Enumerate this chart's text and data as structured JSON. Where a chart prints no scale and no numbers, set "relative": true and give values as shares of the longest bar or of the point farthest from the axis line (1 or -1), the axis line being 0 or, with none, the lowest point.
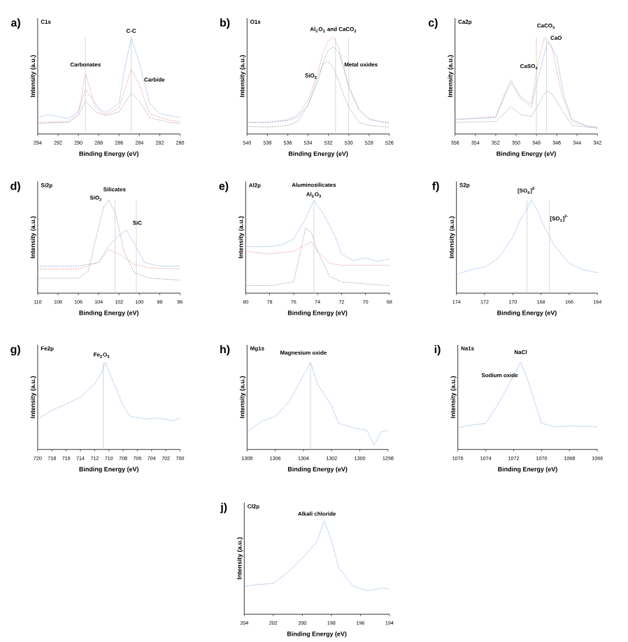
{
  "chart_data": [
    {
      "type": "line",
      "title": "C1s",
      "xlabel": "Binding Energy (eV)",
      "ylabel": "Intensity (a.u.)",
      "relative": true,
      "marker": "none",
      "line_style": "dashed",
      "xlim": [
        294,
        280
      ],
      "xticks": [
        294,
        292,
        290,
        288,
        286,
        284,
        282,
        280
      ],
      "ref_lines": [
        {
          "axis": "x",
          "value": 289.3,
          "color": "#cccccc"
        },
        {
          "axis": "x",
          "value": 284.8,
          "color": "#cccccc"
        }
      ],
      "annotations": [
        "a)",
        "Carbonates",
        "C-C",
        "Carbide"
      ],
      "series": [
        {
          "color": "#8fb0e8",
          "x": [
            294,
            293,
            291,
            290,
            289.3,
            288,
            287.3,
            286,
            285.5,
            284.8,
            284,
            283,
            282,
            281,
            280
          ],
          "values": [
            0.17,
            0.2,
            0.16,
            0.23,
            0.46,
            0.27,
            0.22,
            0.32,
            0.64,
            1.0,
            0.73,
            0.32,
            0.21,
            0.19,
            0.17
          ]
        },
        {
          "color": "#f0a0a0",
          "x": [
            294,
            291,
            290,
            289.3,
            288.3,
            287.3,
            286,
            285.3,
            284.8,
            284,
            283,
            281,
            280
          ],
          "values": [
            0.12,
            0.13,
            0.21,
            0.63,
            0.27,
            0.2,
            0.27,
            0.51,
            0.67,
            0.51,
            0.21,
            0.14,
            0.13
          ]
        },
        {
          "color": "#a8a8a8",
          "x": [
            294,
            291,
            290,
            289.3,
            288.3,
            287.3,
            286,
            284.8,
            284,
            283,
            281,
            280
          ],
          "values": [
            0.11,
            0.12,
            0.19,
            0.34,
            0.23,
            0.19,
            0.23,
            0.42,
            0.34,
            0.17,
            0.12,
            0.11
          ]
        }
      ]
    },
    {
      "type": "line",
      "title": "O1s",
      "xlabel": "Binding Energy (eV)",
      "ylabel": "Intensity (a.u.)",
      "relative": true,
      "marker": "none",
      "line_style": "dashed",
      "xlim": [
        540,
        526
      ],
      "xticks": [
        540,
        538,
        536,
        534,
        532,
        530,
        528,
        526
      ],
      "ref_lines": [
        {
          "axis": "x",
          "value": 531.3,
          "color": "#cccccc"
        },
        {
          "axis": "x",
          "value": 530.0,
          "color": "#cccccc"
        }
      ],
      "annotations": [
        "b)",
        "Al$_{2}$O$_{3}$ and CaCO$_{3}$",
        "Metal oxides",
        "SiO$_{2}$"
      ],
      "series": [
        {
          "color": "#f0a0a0",
          "x": [
            540,
            538,
            536,
            535,
            534,
            533,
            532.5,
            532,
            531.5,
            531,
            530.5,
            530,
            529,
            528,
            527,
            526
          ],
          "values": [
            0.12,
            0.12,
            0.15,
            0.2,
            0.35,
            0.65,
            0.85,
            0.97,
            1.0,
            0.9,
            0.7,
            0.5,
            0.25,
            0.16,
            0.13,
            0.12
          ]
        },
        {
          "color": "#8fb0e8",
          "x": [
            540,
            538,
            536,
            535,
            534,
            533,
            532.5,
            532,
            531.5,
            531,
            530.5,
            530,
            529,
            528,
            527,
            526
          ],
          "values": [
            0.12,
            0.12,
            0.14,
            0.18,
            0.3,
            0.55,
            0.75,
            0.87,
            0.9,
            0.85,
            0.68,
            0.48,
            0.25,
            0.15,
            0.13,
            0.11
          ]
        },
        {
          "color": "#a8a8a8",
          "x": [
            540,
            538,
            536,
            535,
            534,
            533,
            532.5,
            532,
            531.5,
            531,
            530.5,
            530,
            529,
            528,
            527,
            526
          ],
          "values": [
            0.08,
            0.07,
            0.09,
            0.13,
            0.3,
            0.6,
            0.73,
            0.75,
            0.68,
            0.55,
            0.4,
            0.28,
            0.12,
            0.09,
            0.08,
            0.07
          ]
        }
      ]
    },
    {
      "type": "line",
      "title": "Ca2p",
      "xlabel": "Binding Energy (eV)",
      "ylabel": "Intensity (a.u.)",
      "relative": true,
      "marker": "none",
      "line_style": "dashed",
      "xlim": [
        356,
        342
      ],
      "xticks": [
        356,
        354,
        352,
        350,
        348,
        346,
        344,
        342
      ],
      "ref_lines": [
        {
          "axis": "x",
          "value": 348.0,
          "color": "#cccccc"
        },
        {
          "axis": "x",
          "value": 347.0,
          "color": "#cccccc"
        }
      ],
      "annotations": [
        "c)",
        "CaSO$_{4}$",
        "CaCO$_{3}$",
        "CaO"
      ],
      "series": [
        {
          "color": "#f0a0a0",
          "x": [
            356,
            352,
            351,
            350.5,
            349.5,
            348.5,
            347.8,
            347.2,
            346.5,
            345.5,
            344.5,
            343,
            342
          ],
          "values": [
            0.15,
            0.18,
            0.45,
            0.56,
            0.38,
            0.31,
            0.76,
            1.0,
            0.91,
            0.41,
            0.13,
            0.08,
            0.07
          ]
        },
        {
          "color": "#8fb0e8",
          "x": [
            356,
            352,
            351,
            350.5,
            349.5,
            348.5,
            347.8,
            347,
            346.8,
            346,
            345.3,
            344.5,
            343,
            342
          ],
          "values": [
            0.15,
            0.17,
            0.42,
            0.53,
            0.36,
            0.28,
            0.6,
            0.92,
            0.95,
            0.8,
            0.4,
            0.15,
            0.08,
            0.07
          ]
        },
        {
          "color": "#a8a8a8",
          "x": [
            356,
            352,
            350.5,
            349.5,
            348.5,
            347,
            346.5,
            345.5,
            344.5,
            342
          ],
          "values": [
            0.12,
            0.13,
            0.28,
            0.2,
            0.18,
            0.45,
            0.42,
            0.25,
            0.09,
            0.06
          ]
        }
      ]
    },
    {
      "type": "line",
      "title": "Si2p",
      "xlabel": "Binding Energy (eV)",
      "ylabel": "Intensity (a.u.)",
      "relative": true,
      "marker": "none",
      "line_style": "dashed",
      "xlim": [
        110,
        96
      ],
      "xticks": [
        110,
        108,
        106,
        104,
        102,
        100,
        98,
        96
      ],
      "ref_lines": [
        {
          "axis": "x",
          "value": 102.4,
          "color": "#cccccc"
        },
        {
          "axis": "x",
          "value": 100.3,
          "color": "#cccccc"
        }
      ],
      "annotations": [
        "d)",
        "Silicates",
        "SiO$_{2}$",
        "SiC"
      ],
      "series": [
        {
          "color": "#a8a8a8",
          "x": [
            110,
            106,
            105,
            104.5,
            103.5,
            103,
            102.3,
            101.5,
            100.5,
            99,
            96
          ],
          "values": [
            0.16,
            0.16,
            0.24,
            0.49,
            0.93,
            1.0,
            0.84,
            0.44,
            0.22,
            0.16,
            0.14
          ]
        },
        {
          "color": "#8fb0e8",
          "x": [
            110,
            106,
            104,
            103,
            102,
            101.3,
            100.5,
            99.5,
            98,
            96
          ],
          "values": [
            0.29,
            0.29,
            0.33,
            0.51,
            0.62,
            0.68,
            0.53,
            0.33,
            0.29,
            0.29
          ]
        },
        {
          "color": "#f0a0a0",
          "x": [
            110,
            106,
            104,
            103,
            102,
            100.5,
            99,
            96
          ],
          "values": [
            0.26,
            0.26,
            0.33,
            0.47,
            0.42,
            0.31,
            0.27,
            0.26
          ]
        }
      ]
    },
    {
      "type": "line",
      "title": "Al2p",
      "xlabel": "Binding Energy (eV)",
      "ylabel": "Intensity (a.u.)",
      "relative": true,
      "marker": "none",
      "line_style": "dashed",
      "xlim": [
        80,
        68
      ],
      "xticks": [
        80,
        78,
        76,
        74,
        72,
        70,
        68
      ],
      "ref_lines": [
        {
          "axis": "x",
          "value": 74.3,
          "color": "#cccccc"
        }
      ],
      "annotations": [
        "e)",
        "Aluminosilicates",
        "Al$_{2}$O$_{3}$"
      ],
      "series": [
        {
          "color": "#8fb0e8",
          "x": [
            80,
            78,
            77,
            76,
            75,
            74.3,
            73.5,
            72.5,
            72,
            71,
            70,
            69,
            68
          ],
          "values": [
            0.5,
            0.5,
            0.52,
            0.58,
            0.8,
            1.0,
            0.85,
            0.6,
            0.42,
            0.35,
            0.38,
            0.34,
            0.37
          ]
        },
        {
          "color": "#f0a0a0",
          "x": [
            80,
            78,
            76,
            75,
            74.5,
            74,
            73,
            72,
            70,
            68
          ],
          "values": [
            0.45,
            0.42,
            0.45,
            0.52,
            0.55,
            0.45,
            0.32,
            0.3,
            0.3,
            0.3
          ]
        },
        {
          "color": "#a8a8a8",
          "x": [
            80,
            78,
            76,
            75.5,
            75,
            74.5,
            74,
            73,
            72,
            70,
            68
          ],
          "values": [
            0.08,
            0.08,
            0.12,
            0.4,
            0.7,
            0.65,
            0.45,
            0.18,
            0.12,
            0.1,
            0.08
          ]
        }
      ]
    },
    {
      "type": "line",
      "title": "S2p",
      "xlabel": "Binding Energy (eV)",
      "ylabel": "Intensity (a.u.)",
      "relative": true,
      "marker": "none",
      "line_style": "dashed",
      "xlim": [
        174,
        164
      ],
      "xticks": [
        174,
        172,
        170,
        168,
        166,
        164
      ],
      "ref_lines": [
        {
          "axis": "x",
          "value": 169.0,
          "color": "#cccccc"
        },
        {
          "axis": "x",
          "value": 167.4,
          "color": "#cccccc"
        }
      ],
      "annotations": [
        "f)",
        "[SO$_{4}$]$^{2-}$",
        "[SO$_{3}$]$^{2-}$"
      ],
      "series": [
        {
          "color": "#8fb0e8",
          "x": [
            174,
            173,
            172,
            171,
            170,
            169.5,
            169,
            168.7,
            168.3,
            167.8,
            167,
            166,
            165,
            164
          ],
          "values": [
            0.2,
            0.25,
            0.28,
            0.38,
            0.6,
            0.78,
            0.9,
            1.0,
            0.9,
            0.72,
            0.5,
            0.32,
            0.25,
            0.22
          ]
        }
      ]
    },
    {
      "type": "line",
      "title": "Fe2p",
      "xlabel": "Binding Energy (eV)",
      "ylabel": "Intensity (a.u.)",
      "relative": true,
      "marker": "none",
      "line_style": "dashed",
      "xlim": [
        720,
        700
      ],
      "xticks": [
        720,
        718,
        716,
        714,
        712,
        710,
        708,
        706,
        704,
        702,
        700
      ],
      "ref_lines": [
        {
          "axis": "x",
          "value": 710.8,
          "color": "#cccccc"
        }
      ],
      "annotations": [
        "g)",
        "Fe$_{2}$O$_{3}$"
      ],
      "series": [
        {
          "color": "#8fb0e8",
          "x": [
            720,
            718,
            716,
            714,
            712,
            711,
            710.5,
            709.5,
            708,
            707,
            705,
            703,
            701,
            700
          ],
          "values": [
            0.35,
            0.45,
            0.52,
            0.6,
            0.75,
            0.88,
            1.0,
            0.8,
            0.5,
            0.38,
            0.35,
            0.36,
            0.33,
            0.36
          ]
        }
      ]
    },
    {
      "type": "line",
      "title": "Mg1s",
      "xlabel": "Binding Energy (eV)",
      "ylabel": "Intensity (a.u.)",
      "relative": true,
      "marker": "none",
      "line_style": "dashed",
      "xlim": [
        1308,
        1298
      ],
      "xticks": [
        1308,
        1306,
        1304,
        1302,
        1300,
        1298
      ],
      "ref_lines": [
        {
          "axis": "x",
          "value": 1303.5,
          "color": "#cccccc"
        }
      ],
      "annotations": [
        "h)",
        "Magnesium oxide"
      ],
      "series": [
        {
          "color": "#8fb0e8",
          "x": [
            1308,
            1307,
            1306,
            1305,
            1304,
            1303.5,
            1303,
            1302,
            1301.5,
            1300.5,
            1299.5,
            1299,
            1298.5,
            1298
          ],
          "values": [
            0.2,
            0.32,
            0.38,
            0.55,
            0.85,
            1.0,
            0.75,
            0.5,
            0.3,
            0.25,
            0.22,
            0.05,
            0.2,
            0.22
          ]
        }
      ]
    },
    {
      "type": "line",
      "title": "Na1s",
      "xlabel": "Binding Energy (eV)",
      "ylabel": "Intensity (a.u.)",
      "relative": true,
      "marker": "none",
      "line_style": "dashed",
      "xlim": [
        1076,
        1066
      ],
      "xticks": [
        1076,
        1074,
        1072,
        1070,
        1068,
        1066
      ],
      "annotations": [
        "i)",
        "NaCl",
        "Sodium oxide"
      ],
      "series": [
        {
          "color": "#8fb0e8",
          "x": [
            1076,
            1075,
            1074,
            1073,
            1072,
            1071.5,
            1071,
            1070.5,
            1070,
            1069,
            1068,
            1066
          ],
          "values": [
            0.25,
            0.28,
            0.3,
            0.55,
            0.85,
            1.0,
            0.8,
            0.55,
            0.3,
            0.26,
            0.27,
            0.26
          ]
        }
      ]
    },
    {
      "type": "line",
      "title": "Cl2p",
      "xlabel": "Binding Energy (eV)",
      "ylabel": "Intensity (a.u.)",
      "relative": true,
      "marker": "none",
      "line_style": "dashed",
      "xlim": [
        204,
        194
      ],
      "xticks": [
        204,
        202,
        200,
        198,
        196,
        194
      ],
      "annotations": [
        "j)",
        "Alkali chloride"
      ],
      "series": [
        {
          "color": "#8fb0e8",
          "x": [
            204,
            203,
            202,
            201,
            200,
            199,
            198.5,
            198,
            197.5,
            196.5,
            195.5,
            194.5,
            194
          ],
          "values": [
            0.3,
            0.32,
            0.33,
            0.45,
            0.6,
            0.78,
            1.0,
            0.8,
            0.5,
            0.3,
            0.25,
            0.28,
            0.27
          ]
        }
      ]
    }
  ]
}
